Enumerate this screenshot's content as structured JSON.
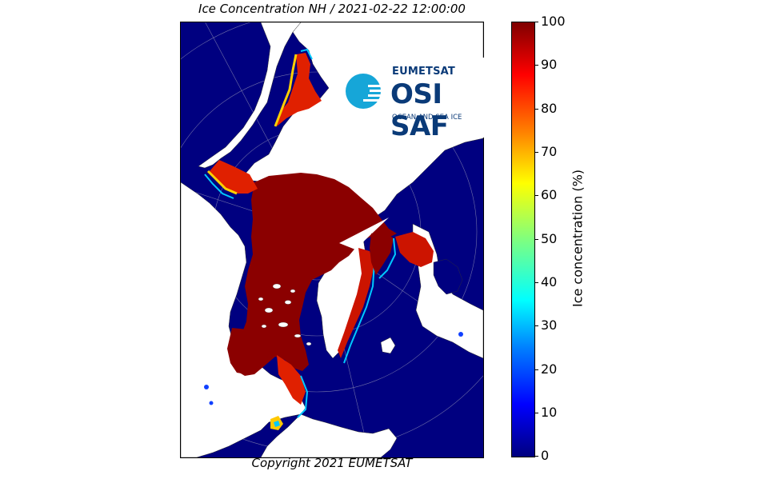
{
  "map": {
    "title": "Ice Concentration NH / 2021-02-22 12:00:00",
    "copyright": "Copyright 2021 EUMETSAT",
    "colors": {
      "ocean": "#000080",
      "land": "#ffffff",
      "ice_full": "#8b0000",
      "ice_edge_high": "#e82000",
      "ice_edge_mid": "#ffd000",
      "ice_edge_low": "#00c8ff"
    }
  },
  "logo": {
    "brand": "EUMETSAT",
    "product": "OSI SAF",
    "tagline": "OCEAN AND SEA ICE"
  },
  "colorbar": {
    "label": "Ice concentration (%)",
    "ticks": [
      "0",
      "10",
      "20",
      "30",
      "40",
      "50",
      "60",
      "70",
      "80",
      "90",
      "100"
    ],
    "min": 0,
    "max": 100
  }
}
